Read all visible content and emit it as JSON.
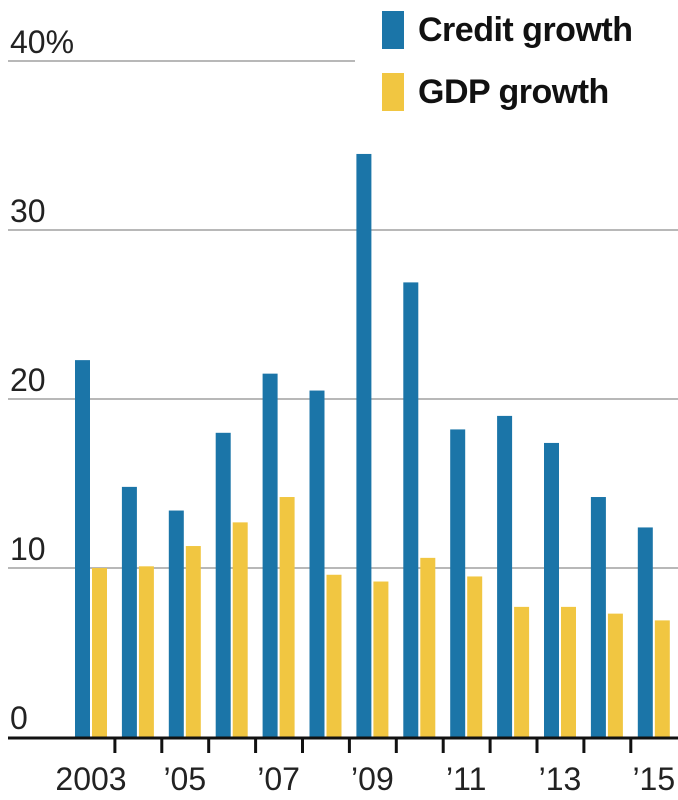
{
  "chart_data": {
    "type": "bar",
    "categories": [
      "2003",
      "2004",
      "2005",
      "2006",
      "2007",
      "2008",
      "2009",
      "2010",
      "2011",
      "2012",
      "2013",
      "2014",
      "2015"
    ],
    "x_tick_labels": [
      "2003",
      "",
      "’05",
      "",
      "’07",
      "",
      "’09",
      "",
      "’11",
      "",
      "’13",
      "",
      "’15"
    ],
    "series": [
      {
        "name": "Credit growth",
        "color": "#1b75a8",
        "values": [
          22.3,
          14.8,
          13.4,
          18.0,
          21.5,
          20.5,
          34.5,
          26.9,
          18.2,
          19.0,
          17.4,
          14.2,
          12.4
        ]
      },
      {
        "name": "GDP growth",
        "color": "#f1c641",
        "values": [
          10.0,
          10.1,
          11.3,
          12.7,
          14.2,
          9.6,
          9.2,
          10.6,
          9.5,
          7.7,
          7.7,
          7.3,
          6.9
        ]
      }
    ],
    "y_ticks": [
      "0",
      "10",
      "20",
      "30",
      "40%"
    ],
    "ylim": [
      0,
      40
    ],
    "grid": true,
    "legend_position": "top-right"
  }
}
